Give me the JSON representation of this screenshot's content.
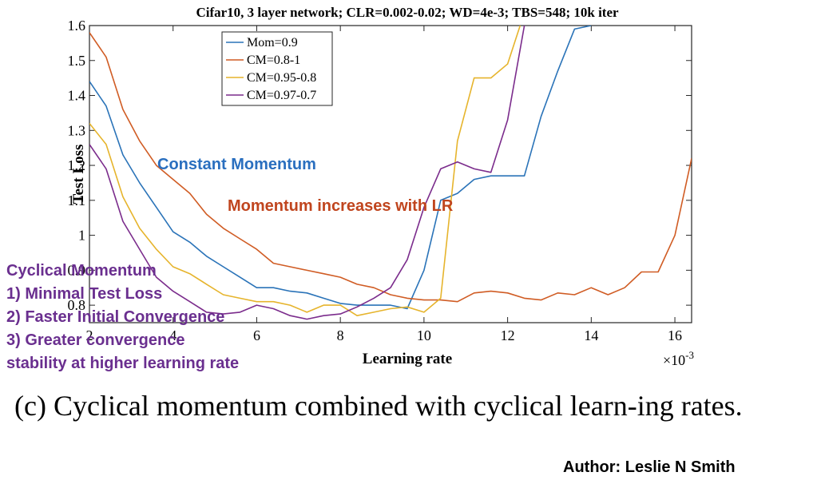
{
  "chart_data": {
    "type": "line",
    "title": "Cifar10, 3 layer network; CLR=0.002-0.02; WD=4e-3; TBS=548; 10k iter",
    "xlabel": "Learning rate",
    "ylabel": "Test Loss",
    "x_multiplier": "×10",
    "x_multiplier_exp": "-3",
    "xlim": [
      2,
      16.4
    ],
    "ylim": [
      0.75,
      1.6
    ],
    "x_ticks": [
      2,
      4,
      6,
      8,
      10,
      12,
      14,
      16
    ],
    "x_tick_labels": [
      "2",
      "4",
      "6",
      "8",
      "10",
      "12",
      "14",
      "16"
    ],
    "y_ticks": [
      0.8,
      0.9,
      1.0,
      1.1,
      1.2,
      1.3,
      1.4,
      1.5,
      1.6
    ],
    "y_tick_labels": [
      "0.8",
      "0.9",
      "1",
      "1.1",
      "1.2",
      "1.3",
      "1.4",
      "1.5",
      "1.6"
    ],
    "grid": false,
    "legend_position": "top-left",
    "series": [
      {
        "name": "Mom=0.9",
        "color": "#2a73b8",
        "x": [
          2,
          2.4,
          2.8,
          3.2,
          3.6,
          4.0,
          4.4,
          4.8,
          5.2,
          5.6,
          6.0,
          6.4,
          6.8,
          7.2,
          7.6,
          8.0,
          8.4,
          8.8,
          9.2,
          9.6,
          10.0,
          10.4,
          10.8,
          11.2,
          11.6,
          12.0,
          12.4,
          12.8,
          13.2,
          13.6,
          14.0
        ],
        "y": [
          1.44,
          1.37,
          1.23,
          1.15,
          1.08,
          1.01,
          0.98,
          0.94,
          0.91,
          0.88,
          0.85,
          0.85,
          0.84,
          0.835,
          0.82,
          0.805,
          0.8,
          0.8,
          0.8,
          0.79,
          0.9,
          1.1,
          1.12,
          1.16,
          1.17,
          1.17,
          1.17,
          1.34,
          1.47,
          1.59,
          1.6
        ]
      },
      {
        "name": "CM=0.8-1",
        "color": "#d05c24",
        "x": [
          2,
          2.4,
          2.8,
          3.2,
          3.6,
          4.0,
          4.4,
          4.8,
          5.2,
          5.6,
          6.0,
          6.4,
          6.8,
          7.2,
          7.6,
          8.0,
          8.4,
          8.8,
          9.2,
          9.6,
          10.0,
          10.4,
          10.8,
          11.2,
          11.6,
          12.0,
          12.4,
          12.8,
          13.2,
          13.6,
          14.0,
          14.4,
          14.8,
          15.2,
          15.6,
          16.0,
          16.4
        ],
        "y": [
          1.58,
          1.51,
          1.36,
          1.27,
          1.2,
          1.16,
          1.12,
          1.06,
          1.02,
          0.99,
          0.96,
          0.92,
          0.91,
          0.9,
          0.89,
          0.88,
          0.86,
          0.85,
          0.83,
          0.82,
          0.815,
          0.815,
          0.81,
          0.835,
          0.84,
          0.835,
          0.82,
          0.815,
          0.835,
          0.83,
          0.85,
          0.83,
          0.85,
          0.895,
          0.895,
          1.0,
          1.22
        ]
      },
      {
        "name": "CM=0.95-0.8",
        "color": "#e6b42c",
        "x": [
          2,
          2.4,
          2.8,
          3.2,
          3.6,
          4.0,
          4.4,
          4.8,
          5.2,
          5.6,
          6.0,
          6.4,
          6.8,
          7.2,
          7.6,
          8.0,
          8.4,
          8.8,
          9.2,
          9.6,
          10.0,
          10.4,
          10.8,
          11.2,
          11.6,
          12.0,
          12.3
        ],
        "y": [
          1.32,
          1.26,
          1.11,
          1.02,
          0.96,
          0.91,
          0.89,
          0.86,
          0.83,
          0.82,
          0.81,
          0.81,
          0.8,
          0.78,
          0.8,
          0.8,
          0.77,
          0.78,
          0.79,
          0.795,
          0.78,
          0.82,
          1.27,
          1.45,
          1.45,
          1.49,
          1.6
        ]
      },
      {
        "name": "CM=0.97-0.7",
        "color": "#7b2c8c",
        "x": [
          2,
          2.4,
          2.8,
          3.2,
          3.6,
          4.0,
          4.4,
          4.8,
          5.2,
          5.6,
          6.0,
          6.4,
          6.8,
          7.2,
          7.6,
          8.0,
          8.4,
          8.8,
          9.2,
          9.6,
          10.0,
          10.4,
          10.8,
          11.2,
          11.6,
          12.0,
          12.4
        ],
        "y": [
          1.26,
          1.19,
          1.04,
          0.96,
          0.88,
          0.84,
          0.81,
          0.78,
          0.775,
          0.78,
          0.8,
          0.79,
          0.77,
          0.76,
          0.77,
          0.775,
          0.795,
          0.82,
          0.85,
          0.93,
          1.08,
          1.19,
          1.21,
          1.19,
          1.18,
          1.33,
          1.6
        ]
      }
    ],
    "annotations": [
      {
        "text": "Constant Momentum",
        "color": "#2a6fbf"
      },
      {
        "text": "Momentum increases with LR",
        "color": "#c0451e"
      },
      {
        "text": "Cyclical Momentum",
        "color": "#6a2f8f"
      },
      {
        "text": "1) Minimal Test Loss",
        "color": "#6a2f8f"
      },
      {
        "text": "2) Faster Initial Convergence",
        "color": "#6a2f8f"
      },
      {
        "text": "3) Greater convergence",
        "color": "#6a2f8f"
      },
      {
        "text": "stability at higher learning rate",
        "color": "#6a2f8f"
      }
    ]
  },
  "caption": "(c) Cyclical momentum combined with cyclical learn-ing rates.",
  "author": "Author: Leslie N Smith"
}
